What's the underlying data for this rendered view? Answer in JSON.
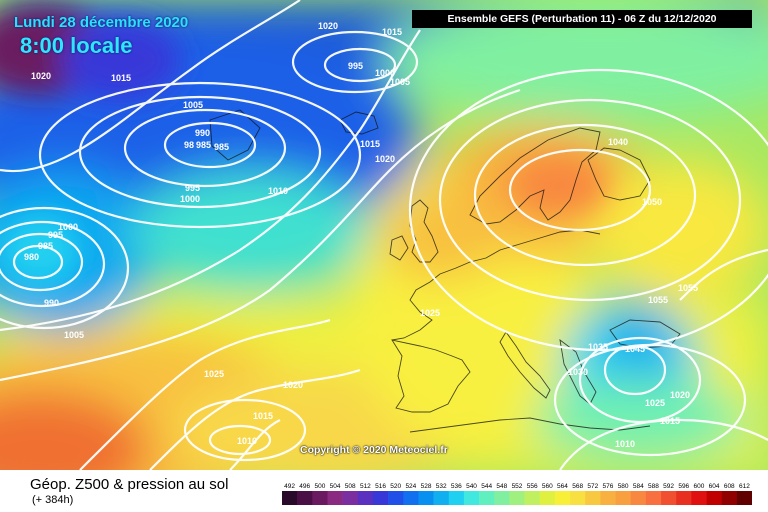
{
  "date_label": "Lundi 28 décembre 2020",
  "time_label": "8:00 locale",
  "run_info": "Ensemble GEFS  (Perturbation 11)  -  06 Z du 12/12/2020",
  "copyright": "Copyright © 2020 Meteociel.fr",
  "footer": {
    "title": "Géop. Z500 & pression au sol",
    "subtitle": "(+ 384h)"
  },
  "isobar_labels": [
    {
      "text": "1020",
      "name": "isobar-label-1020-nw"
    },
    {
      "text": "1015",
      "name": "isobar-label-1015-nw"
    },
    {
      "text": "1020",
      "name": "isobar-label-1020-top"
    },
    {
      "text": "1015",
      "name": "isobar-label-1015-top"
    },
    {
      "text": "995",
      "name": "isobar-label-995-top"
    },
    {
      "text": "1000",
      "name": "isobar-label-1000-top"
    },
    {
      "text": "1005",
      "name": "isobar-label-1005-top"
    },
    {
      "text": "1005",
      "name": "isobar-label-1005-nlow"
    },
    {
      "text": "990",
      "name": "isobar-label-990-nlow"
    },
    {
      "text": "98",
      "name": "isobar-label-98-nlow"
    },
    {
      "text": "985",
      "name": "isobar-label-985-nlow-a"
    },
    {
      "text": "985",
      "name": "isobar-label-985-nlow-b"
    },
    {
      "text": "995",
      "name": "isobar-label-995-nlow"
    },
    {
      "text": "1000",
      "name": "isobar-label-1000-nlow"
    },
    {
      "text": "1010",
      "name": "isobar-label-1010-mid"
    },
    {
      "text": "1015",
      "name": "isobar-label-1015-mid"
    },
    {
      "text": "1020",
      "name": "isobar-label-1020-mid"
    },
    {
      "text": "1000",
      "name": "isobar-label-1000-wlow"
    },
    {
      "text": "995",
      "name": "isobar-label-995-wlow"
    },
    {
      "text": "985",
      "name": "isobar-label-985-wlow"
    },
    {
      "text": "980",
      "name": "isobar-label-980-wlow"
    },
    {
      "text": "990",
      "name": "isobar-label-990-wlow"
    },
    {
      "text": "1005",
      "name": "isobar-label-1005-wlow"
    },
    {
      "text": "1040",
      "name": "isobar-label-1040-scand"
    },
    {
      "text": "1050",
      "name": "isobar-label-1050-east"
    },
    {
      "text": "1055",
      "name": "isobar-label-1055-east"
    },
    {
      "text": "1055",
      "name": "isobar-label-1055-ne"
    },
    {
      "text": "1025",
      "name": "isobar-label-1025-france"
    },
    {
      "text": "1035",
      "name": "isobar-label-1035-med"
    },
    {
      "text": "1045",
      "name": "isobar-label-1045-med"
    },
    {
      "text": "1030",
      "name": "isobar-label-1030-med"
    },
    {
      "text": "1020",
      "name": "isobar-label-1020-se"
    },
    {
      "text": "1025",
      "name": "isobar-label-1025-se"
    },
    {
      "text": "1015",
      "name": "isobar-label-1015-se"
    },
    {
      "text": "1010",
      "name": "isobar-label-1010-se"
    },
    {
      "text": "1025",
      "name": "isobar-label-1025-sw"
    },
    {
      "text": "1020",
      "name": "isobar-label-1020-sw"
    },
    {
      "text": "1015",
      "name": "isobar-label-1015-sw"
    },
    {
      "text": "1010",
      "name": "isobar-label-1010-sw"
    }
  ],
  "legend": {
    "values": [
      "492",
      "496",
      "500",
      "504",
      "508",
      "512",
      "516",
      "520",
      "524",
      "528",
      "532",
      "536",
      "540",
      "544",
      "548",
      "552",
      "556",
      "560",
      "564",
      "568",
      "572",
      "576",
      "580",
      "584",
      "588",
      "592",
      "596",
      "600",
      "604",
      "608",
      "612"
    ],
    "colors": [
      "#2a0a2a",
      "#4a1046",
      "#6a1a60",
      "#8a2a80",
      "#7a2ea0",
      "#5a30c0",
      "#3838d8",
      "#2050e8",
      "#1070f0",
      "#0890f0",
      "#10b0f0",
      "#20d0f0",
      "#40e8e0",
      "#60f0c0",
      "#80f0a0",
      "#a0f080",
      "#c0f060",
      "#e0f040",
      "#f8f038",
      "#f8e040",
      "#f8c840",
      "#f8b040",
      "#f8a040",
      "#f88840",
      "#f87040",
      "#f05030",
      "#e83020",
      "#e01010",
      "#c00000",
      "#900000",
      "#600000"
    ]
  }
}
